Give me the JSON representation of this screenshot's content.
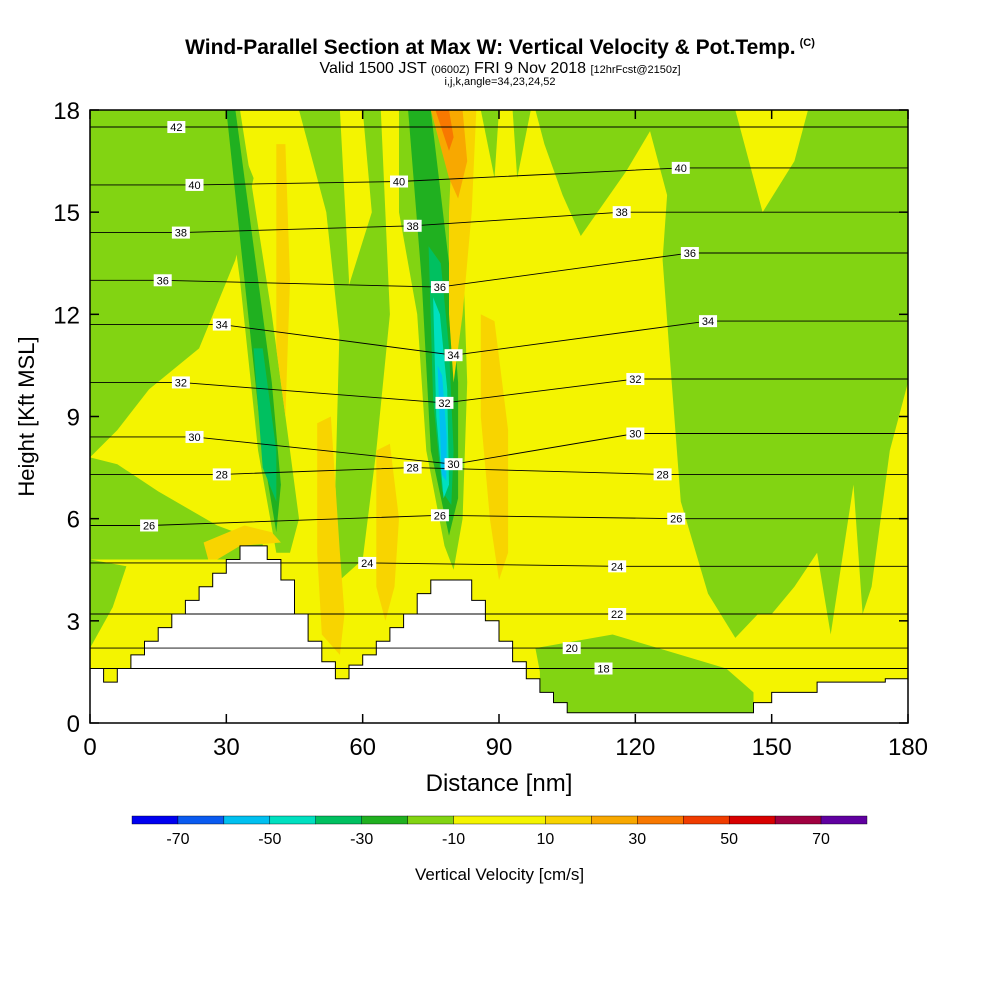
{
  "header": {
    "title": "Wind-Parallel Section at Max W: Vertical Velocity & Pot.Temp.",
    "title_mark": "(C)",
    "valid_prefix": "Valid 1500 JST",
    "valid_utc": "(0600Z)",
    "valid_date": "FRI 9 Nov 2018",
    "forecast": "[12hrFcst@2150z]",
    "indices": "i,j,k,angle=34,23,24,52"
  },
  "chart_data": {
    "type": "heatmap",
    "xlabel": "Distance [nm]",
    "ylabel": "Height [Kft MSL]",
    "xlim": [
      0,
      180
    ],
    "ylim": [
      0,
      18
    ],
    "x_ticks": [
      0,
      30,
      60,
      90,
      120,
      150,
      180
    ],
    "y_ticks": [
      0,
      3,
      6,
      9,
      12,
      15,
      18
    ],
    "colorbar": {
      "label": "Vertical Velocity [cm/s]",
      "tick_labels": [
        "-70",
        "-50",
        "-30",
        "-10",
        "10",
        "30",
        "50",
        "70"
      ],
      "bins": [
        -80,
        -70,
        -60,
        -50,
        -40,
        -30,
        -20,
        -10,
        10,
        20,
        30,
        40,
        50,
        60,
        70,
        80
      ],
      "colors": [
        "#0000f0",
        "#0a5af0",
        "#00c0f0",
        "#00e0c0",
        "#00c060",
        "#20b020",
        "#82d412",
        "#f4f400",
        "#f8d400",
        "#f8a800",
        "#f87800",
        "#f03c00",
        "#d80000",
        "#a00040",
        "#6000a0"
      ]
    },
    "terrain": [
      [
        0,
        1.6
      ],
      [
        3,
        1.6
      ],
      [
        3,
        1.2
      ],
      [
        6,
        1.2
      ],
      [
        6,
        1.6
      ],
      [
        9,
        1.6
      ],
      [
        9,
        2.0
      ],
      [
        12,
        2.0
      ],
      [
        12,
        2.4
      ],
      [
        15,
        2.4
      ],
      [
        15,
        2.8
      ],
      [
        18,
        2.8
      ],
      [
        18,
        3.2
      ],
      [
        21,
        3.2
      ],
      [
        21,
        3.6
      ],
      [
        24,
        3.6
      ],
      [
        24,
        4.0
      ],
      [
        27,
        4.0
      ],
      [
        27,
        4.4
      ],
      [
        30,
        4.4
      ],
      [
        30,
        4.8
      ],
      [
        33,
        4.8
      ],
      [
        33,
        5.2
      ],
      [
        39,
        5.2
      ],
      [
        39,
        4.8
      ],
      [
        42,
        4.8
      ],
      [
        42,
        4.2
      ],
      [
        45,
        4.2
      ],
      [
        45,
        3.2
      ],
      [
        48,
        3.2
      ],
      [
        48,
        2.4
      ],
      [
        51,
        2.4
      ],
      [
        51,
        1.8
      ],
      [
        54,
        1.8
      ],
      [
        54,
        1.3
      ],
      [
        57,
        1.3
      ],
      [
        57,
        1.7
      ],
      [
        60,
        1.7
      ],
      [
        60,
        2.0
      ],
      [
        63,
        2.0
      ],
      [
        63,
        2.4
      ],
      [
        66,
        2.4
      ],
      [
        66,
        2.8
      ],
      [
        69,
        2.8
      ],
      [
        69,
        3.2
      ],
      [
        72,
        3.2
      ],
      [
        72,
        3.8
      ],
      [
        75,
        3.8
      ],
      [
        75,
        4.2
      ],
      [
        84,
        4.2
      ],
      [
        84,
        3.6
      ],
      [
        87,
        3.6
      ],
      [
        87,
        3.0
      ],
      [
        90,
        3.0
      ],
      [
        90,
        2.4
      ],
      [
        93,
        2.4
      ],
      [
        93,
        1.8
      ],
      [
        96,
        1.8
      ],
      [
        96,
        1.3
      ],
      [
        99,
        1.3
      ],
      [
        99,
        0.9
      ],
      [
        102,
        0.9
      ],
      [
        102,
        0.6
      ],
      [
        105,
        0.6
      ],
      [
        105,
        0.3
      ],
      [
        146,
        0.3
      ],
      [
        146,
        0.6
      ],
      [
        150,
        0.6
      ],
      [
        150,
        0.9
      ],
      [
        160,
        0.9
      ],
      [
        160,
        1.2
      ],
      [
        175,
        1.2
      ],
      [
        175,
        1.3
      ],
      [
        180,
        1.3
      ]
    ],
    "vertical_velocity_features": [
      {
        "sign": "down",
        "min": -40,
        "x": [
          36,
          82
        ],
        "z": [
          6,
          15
        ]
      },
      {
        "sign": "down",
        "min": -10,
        "x": [
          118,
          175
        ],
        "z": [
          3,
          18
        ]
      },
      {
        "sign": "up",
        "max": 40,
        "x": [
          74,
          82
        ],
        "z": [
          15,
          18
        ]
      },
      {
        "sign": "up",
        "max": 20,
        "x": [
          38,
          92
        ],
        "z": [
          2,
          12
        ]
      }
    ],
    "theta_contour_labels": [
      {
        "value": "42",
        "x": 19,
        "z": 17.5
      },
      {
        "value": "40",
        "x": 23,
        "z": 15.8
      },
      {
        "value": "38",
        "x": 20,
        "z": 14.4
      },
      {
        "value": "36",
        "x": 16,
        "z": 13.0
      },
      {
        "value": "34",
        "x": 29,
        "z": 11.7
      },
      {
        "value": "32",
        "x": 20,
        "z": 10.0
      },
      {
        "value": "30",
        "x": 23,
        "z": 8.4
      },
      {
        "value": "28",
        "x": 29,
        "z": 7.3
      },
      {
        "value": "26",
        "x": 13,
        "z": 5.8
      },
      {
        "value": "24",
        "x": 61,
        "z": 4.7
      },
      {
        "value": "40",
        "x": 68,
        "z": 15.9
      },
      {
        "value": "38",
        "x": 71,
        "z": 14.6
      },
      {
        "value": "36",
        "x": 77,
        "z": 12.8
      },
      {
        "value": "34",
        "x": 80,
        "z": 10.8
      },
      {
        "value": "32",
        "x": 78,
        "z": 9.4
      },
      {
        "value": "30",
        "x": 80,
        "z": 7.6
      },
      {
        "value": "28",
        "x": 71,
        "z": 7.5
      },
      {
        "value": "26",
        "x": 77,
        "z": 6.1
      },
      {
        "value": "40",
        "x": 130,
        "z": 16.3
      },
      {
        "value": "38",
        "x": 117,
        "z": 15.0
      },
      {
        "value": "36",
        "x": 132,
        "z": 13.8
      },
      {
        "value": "34",
        "x": 136,
        "z": 11.8
      },
      {
        "value": "32",
        "x": 120,
        "z": 10.1
      },
      {
        "value": "30",
        "x": 120,
        "z": 8.5
      },
      {
        "value": "28",
        "x": 126,
        "z": 7.3
      },
      {
        "value": "26",
        "x": 129,
        "z": 6.0
      },
      {
        "value": "24",
        "x": 116,
        "z": 4.6
      },
      {
        "value": "22",
        "x": 116,
        "z": 3.2
      },
      {
        "value": "20",
        "x": 106,
        "z": 2.2
      },
      {
        "value": "18",
        "x": 113,
        "z": 1.6
      }
    ]
  }
}
